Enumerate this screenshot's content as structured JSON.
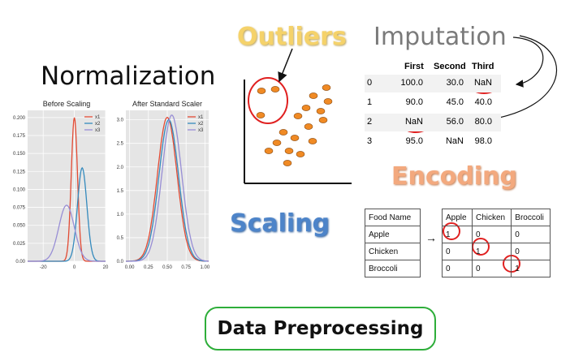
{
  "titles": {
    "normalization": "Normalization",
    "outliers": "Outliers",
    "imputation": "Imputation",
    "encoding": "Encoding",
    "scaling": "Scaling",
    "main": "Data Preprocessing"
  },
  "colors": {
    "x1": "#e24a33",
    "x2": "#348abd",
    "x3": "#988ed5",
    "outlier_dot": "#f08a24",
    "circle": "#e02020",
    "frame_green": "#2eae3a"
  },
  "chart_data": [
    {
      "type": "line",
      "title": "Before Scaling",
      "legend": [
        "x1",
        "x2",
        "x3"
      ],
      "xticks": [
        "-20",
        "0",
        "20"
      ],
      "yticks": [
        "0.00",
        "0.025",
        "0.050",
        "0.075",
        "0.100",
        "0.125",
        "0.150",
        "0.175",
        "0.200"
      ],
      "xlim": [
        -30,
        20
      ],
      "ylim": [
        0,
        0.21
      ],
      "series": [
        {
          "name": "x1",
          "mean": 0,
          "sd": 2,
          "peak": 0.2
        },
        {
          "name": "x2",
          "mean": 5,
          "sd": 3,
          "peak": 0.13
        },
        {
          "name": "x3",
          "mean": -5,
          "sd": 5,
          "peak": 0.078
        }
      ]
    },
    {
      "type": "line",
      "title": "After Standard Scaler",
      "legend": [
        "x1",
        "x2",
        "x3"
      ],
      "xticks": [
        "0.00",
        "0.25",
        "0.50",
        "0.75",
        "1.00"
      ],
      "yticks": [
        "0.0",
        "0.5",
        "1.0",
        "1.5",
        "2.0",
        "2.5",
        "3.0"
      ],
      "xlim": [
        -0.05,
        1.05
      ],
      "ylim": [
        0,
        3.2
      ],
      "series": [
        {
          "name": "x1",
          "mean": 0.5,
          "sd": 0.13,
          "peak": 3.05
        },
        {
          "name": "x2",
          "mean": 0.52,
          "sd": 0.13,
          "peak": 3.0
        },
        {
          "name": "x3",
          "mean": 0.56,
          "sd": 0.13,
          "peak": 3.1
        }
      ]
    }
  ],
  "imputation_table": {
    "headers": [
      "First",
      "Second",
      "Third"
    ],
    "rows": [
      {
        "index": "0",
        "cells": [
          "100.0",
          "30.0",
          "NaN"
        ]
      },
      {
        "index": "1",
        "cells": [
          "90.0",
          "45.0",
          "40.0"
        ]
      },
      {
        "index": "2",
        "cells": [
          "NaN",
          "56.0",
          "80.0"
        ]
      },
      {
        "index": "3",
        "cells": [
          "95.0",
          "NaN",
          "98.0"
        ]
      }
    ]
  },
  "encoding": {
    "food_header": "Food Name",
    "foods": [
      "Apple",
      "Chicken",
      "Broccoli"
    ],
    "arrow": "→",
    "onehot_headers": [
      "Apple",
      "Chicken",
      "Broccoli"
    ],
    "onehot_rows": [
      [
        "1",
        "0",
        "0"
      ],
      [
        "0",
        "1",
        "0"
      ],
      [
        "0",
        "0",
        "1"
      ]
    ]
  }
}
